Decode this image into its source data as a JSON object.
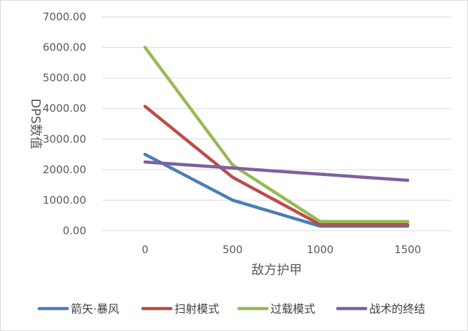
{
  "chart_data": {
    "type": "line",
    "xlabel": "敌方护甲",
    "ylabel": "DPS数值",
    "x": [
      0,
      500,
      1000,
      1500
    ],
    "x_tick_labels": [
      "0",
      "500",
      "1000",
      "1500"
    ],
    "ylim": [
      0,
      7000
    ],
    "y_tick_labels": [
      "0.00",
      "1000.00",
      "2000.00",
      "3000.00",
      "4000.00",
      "5000.00",
      "6000.00",
      "7000.00"
    ],
    "grid": true,
    "legend": "bottom",
    "series": [
      {
        "name": "箭矢·暴风",
        "color": "#4a7ebb",
        "values": [
          2500,
          1000,
          150,
          150
        ]
      },
      {
        "name": "扫射模式",
        "color": "#be4b48",
        "values": [
          4070,
          1750,
          200,
          200
        ]
      },
      {
        "name": "过载模式",
        "color": "#98b954",
        "values": [
          6000,
          2150,
          300,
          300
        ]
      },
      {
        "name": "战术的终结",
        "color": "#7d60a0",
        "values": [
          2250,
          2050,
          1850,
          1650
        ]
      }
    ]
  }
}
